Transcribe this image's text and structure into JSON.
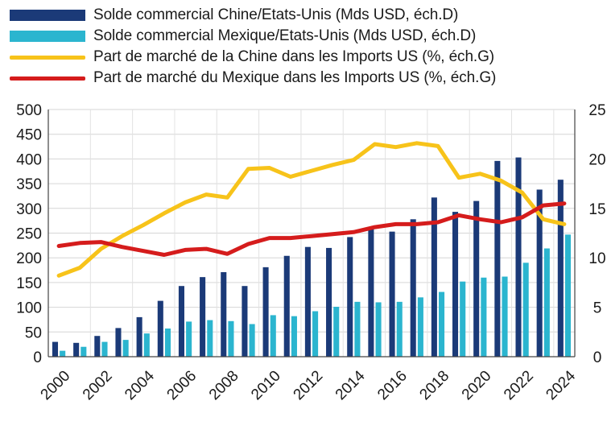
{
  "chart_data": {
    "type": "bar+line",
    "title": "",
    "categories": [
      "2000",
      "2001",
      "2002",
      "2003",
      "2004",
      "2005",
      "2006",
      "2007",
      "2008",
      "2009",
      "2010",
      "2011",
      "2012",
      "2013",
      "2014",
      "2015",
      "2016",
      "2017",
      "2018",
      "2019",
      "2020",
      "2021",
      "2022",
      "2023",
      "2024"
    ],
    "x_tick_labels": [
      "2000",
      "2002",
      "2004",
      "2006",
      "2008",
      "2010",
      "2012",
      "2014",
      "2016",
      "2018",
      "2020",
      "2022",
      "2024"
    ],
    "left_axis": {
      "ylim": [
        0,
        500
      ],
      "ticks": [
        "0",
        "50",
        "100",
        "150",
        "200",
        "250",
        "300",
        "350",
        "400",
        "450",
        "500"
      ]
    },
    "right_axis": {
      "ylim": [
        0,
        25
      ],
      "ticks": [
        "0",
        "5",
        "10",
        "15",
        "20",
        "25"
      ]
    },
    "grid": true,
    "legend_position": "top",
    "series": [
      {
        "name": "Solde commercial Chine/Etats-Unis (Mds USD, éch.D)",
        "kind": "bar",
        "axis": "left",
        "color": "#1b3a78",
        "values": [
          30,
          28,
          42,
          58,
          80,
          113,
          143,
          161,
          171,
          143,
          181,
          204,
          222,
          220,
          242,
          262,
          253,
          278,
          322,
          293,
          315,
          396,
          403,
          338,
          358
        ]
      },
      {
        "name": "Solde commercial Mexique/Etats-Unis (Mds USD, éch.D)",
        "kind": "bar",
        "axis": "left",
        "color": "#2bb5cf",
        "values": [
          12,
          20,
          30,
          34,
          47,
          57,
          71,
          74,
          72,
          66,
          84,
          82,
          92,
          101,
          111,
          110,
          111,
          120,
          131,
          152,
          160,
          162,
          190,
          219,
          247
        ]
      },
      {
        "name": "Part de marché de la Chine dans les Imports US (%, éch.G)",
        "kind": "line",
        "axis": "right",
        "color": "#f7c31a",
        "values": [
          8.2,
          9.0,
          10.9,
          12.2,
          13.3,
          14.5,
          15.6,
          16.4,
          16.1,
          19.0,
          19.1,
          18.2,
          18.8,
          19.4,
          19.9,
          21.5,
          21.2,
          21.6,
          21.3,
          18.1,
          18.5,
          17.8,
          16.6,
          13.9,
          13.4
        ]
      },
      {
        "name": "Part de marché du Mexique dans les Imports US (%, éch.G)",
        "kind": "line",
        "axis": "right",
        "color": "#d51c1c",
        "values": [
          11.2,
          11.5,
          11.6,
          11.1,
          10.7,
          10.3,
          10.8,
          10.9,
          10.4,
          11.4,
          12.0,
          12.0,
          12.2,
          12.4,
          12.6,
          13.1,
          13.4,
          13.4,
          13.6,
          14.3,
          13.9,
          13.6,
          14.1,
          15.3,
          15.5
        ]
      }
    ]
  }
}
